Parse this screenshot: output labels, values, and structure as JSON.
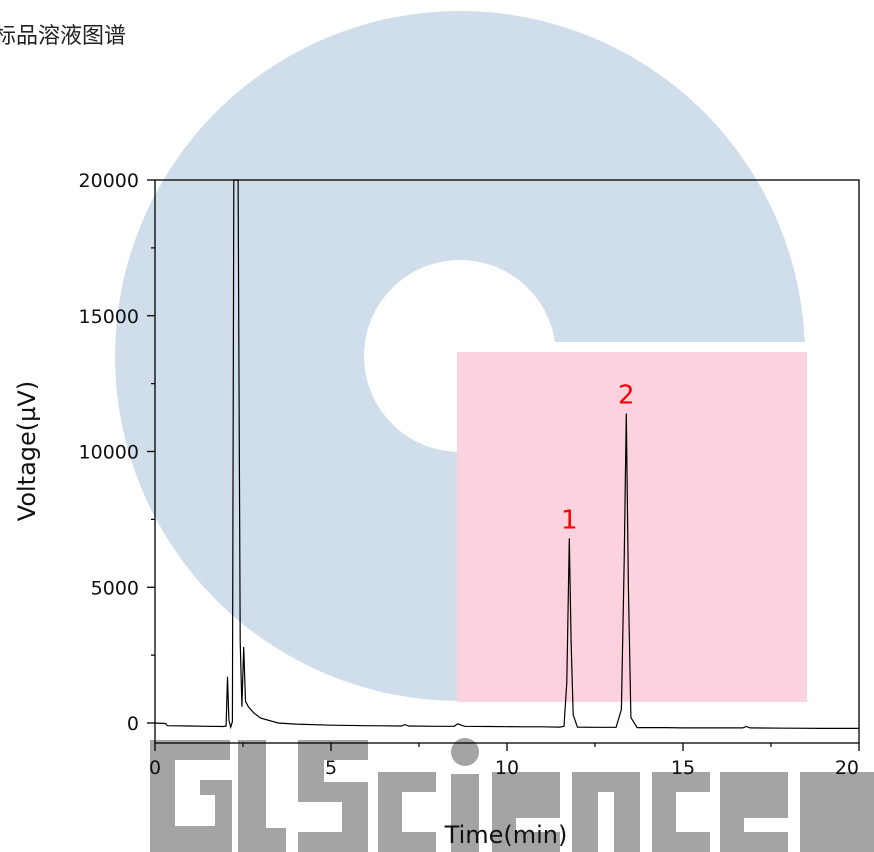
{
  "chart_data": {
    "type": "line",
    "title": "标品溶液图谱",
    "xlabel": "Time(min)",
    "ylabel": "Voltage(µV)",
    "xlim": [
      0,
      20
    ],
    "ylim": [
      -700,
      20000
    ],
    "x_ticks": [
      0,
      5,
      10,
      15,
      20
    ],
    "y_ticks": [
      0,
      5000,
      10000,
      15000,
      20000
    ],
    "grid": false,
    "series": [
      {
        "points": [
          [
            0,
            0
          ],
          [
            0.3,
            -20
          ],
          [
            0.35,
            -100
          ],
          [
            1.0,
            -110
          ],
          [
            1.5,
            -120
          ],
          [
            1.95,
            -130
          ],
          [
            2.02,
            -110
          ],
          [
            2.06,
            1700
          ],
          [
            2.1,
            100
          ],
          [
            2.15,
            -150
          ],
          [
            2.2,
            50
          ],
          [
            2.24,
            20000
          ],
          [
            2.31,
            20000
          ],
          [
            2.36,
            20000
          ],
          [
            2.42,
            3000
          ],
          [
            2.47,
            600
          ],
          [
            2.52,
            2800
          ],
          [
            2.57,
            800
          ],
          [
            2.65,
            600
          ],
          [
            2.8,
            380
          ],
          [
            3.0,
            180
          ],
          [
            3.5,
            0
          ],
          [
            4.0,
            -40
          ],
          [
            5.0,
            -80
          ],
          [
            6.0,
            -100
          ],
          [
            7.0,
            -110
          ],
          [
            7.1,
            -60
          ],
          [
            7.2,
            -110
          ],
          [
            8.0,
            -120
          ],
          [
            8.5,
            -120
          ],
          [
            8.6,
            -30
          ],
          [
            8.7,
            -80
          ],
          [
            8.8,
            -120
          ],
          [
            9.5,
            -130
          ],
          [
            10.5,
            -140
          ],
          [
            11.0,
            -140
          ],
          [
            11.5,
            -150
          ],
          [
            11.62,
            -120
          ],
          [
            11.7,
            1500
          ],
          [
            11.77,
            6800
          ],
          [
            11.82,
            3000
          ],
          [
            11.88,
            300
          ],
          [
            12.0,
            -150
          ],
          [
            12.5,
            -160
          ],
          [
            13.1,
            -160
          ],
          [
            13.25,
            500
          ],
          [
            13.33,
            6000
          ],
          [
            13.39,
            11400
          ],
          [
            13.45,
            5000
          ],
          [
            13.52,
            200
          ],
          [
            13.7,
            -170
          ],
          [
            14.5,
            -170
          ],
          [
            15.0,
            -180
          ],
          [
            16.0,
            -180
          ],
          [
            16.7,
            -180
          ],
          [
            16.8,
            -130
          ],
          [
            16.9,
            -180
          ],
          [
            18.0,
            -190
          ],
          [
            19.0,
            -200
          ],
          [
            20.0,
            -200
          ]
        ]
      }
    ],
    "annotations": [
      {
        "text": "1",
        "x": 11.77,
        "y": 6800,
        "color": "#ff0000"
      },
      {
        "text": "2",
        "x": 13.39,
        "y": 11400,
        "color": "#ff0000"
      }
    ]
  },
  "watermark": {
    "text": "GL Sciences",
    "circle_color": "#d0ddeb",
    "square_color": "#fbd2dd",
    "letters_color": "#a4a4a4"
  },
  "colors": {
    "line": "#000000",
    "axis": "#000000"
  }
}
